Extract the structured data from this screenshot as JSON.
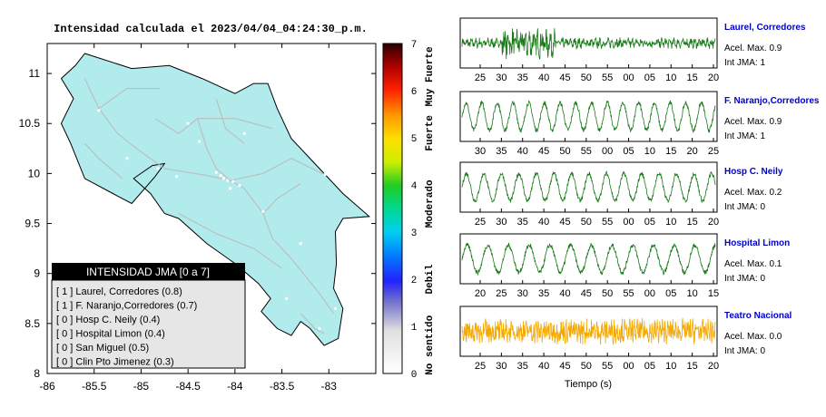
{
  "title": "Intensidad calculada el 2023/04/04_04:24:30_p.m.",
  "map": {
    "lon_ticks": [
      "-86",
      "-85.5",
      "-85",
      "-84.5",
      "-84",
      "-83.5",
      "-83"
    ],
    "lat_ticks": [
      "11",
      "10.5",
      "10",
      "9.5",
      "9",
      "8.5",
      "8"
    ],
    "xlim": [
      -86,
      -82.5
    ],
    "ylim": [
      8,
      11.3
    ],
    "land_color": "#b2ebeb",
    "road_color": "#bcbcbc"
  },
  "legend": {
    "title": "INTENSIDAD JMA [0 a 7]",
    "items": [
      "[ 1 ]  Laurel, Corredores (0.8)",
      "[ 1 ]  F. Naranjo,Corredores (0.7)",
      "[ 0 ]  Hosp C. Neily (0.4)",
      "[ 0 ]  Hospital Limon (0.4)",
      "[ 0 ]  San Miguel (0.5)",
      "[ 0 ]  Clin Pto Jimenez (0.3)"
    ]
  },
  "colorbar": {
    "ticks": [
      "0",
      "1",
      "2",
      "3",
      "4",
      "5",
      "6",
      "7"
    ],
    "labels": [
      "No sentido",
      "Debil",
      "Moderado",
      "Fuerte",
      "Muy Fuerte"
    ],
    "range": [
      0,
      7
    ]
  },
  "chart_data": [
    {
      "type": "line",
      "station": "Laurel, Corredores",
      "accel_label": "Acel. Max. 0.9",
      "int_label": "Int JMA: 1",
      "color": "#1a7a1a",
      "x_ticks": [
        "25",
        "30",
        "35",
        "40",
        "45",
        "50",
        "55",
        "00",
        "05",
        "10",
        "15",
        "20"
      ]
    },
    {
      "type": "line",
      "station": "F. Naranjo,Corredores",
      "accel_label": "Acel. Max. 0.9",
      "int_label": "Int JMA: 1",
      "color": "#1a7a1a",
      "x_ticks": [
        "30",
        "35",
        "40",
        "45",
        "50",
        "55",
        "00",
        "05",
        "10",
        "15",
        "20",
        "25"
      ]
    },
    {
      "type": "line",
      "station": "Hosp C. Neily",
      "accel_label": "Acel. Max. 0.2",
      "int_label": "Int JMA: 0",
      "color": "#1a7a1a",
      "x_ticks": [
        "25",
        "30",
        "35",
        "40",
        "45",
        "50",
        "55",
        "00",
        "05",
        "10",
        "15",
        "20"
      ]
    },
    {
      "type": "line",
      "station": "Hospital Limon",
      "accel_label": "Acel. Max. 0.1",
      "int_label": "Int JMA: 0",
      "color": "#1a7a1a",
      "x_ticks": [
        "20",
        "25",
        "30",
        "35",
        "40",
        "45",
        "50",
        "55",
        "00",
        "05",
        "10",
        "15"
      ]
    },
    {
      "type": "line",
      "station": "Teatro Nacional",
      "accel_label": "Acel. Max. 0.0",
      "int_label": "Int JMA: 0",
      "color": "#f5a800",
      "x_ticks": [
        "25",
        "30",
        "35",
        "40",
        "45",
        "50",
        "55",
        "00",
        "05",
        "10",
        "15",
        "20"
      ]
    }
  ],
  "xlabel": "Tiempo (s)",
  "station_name_color": "#0000cc"
}
